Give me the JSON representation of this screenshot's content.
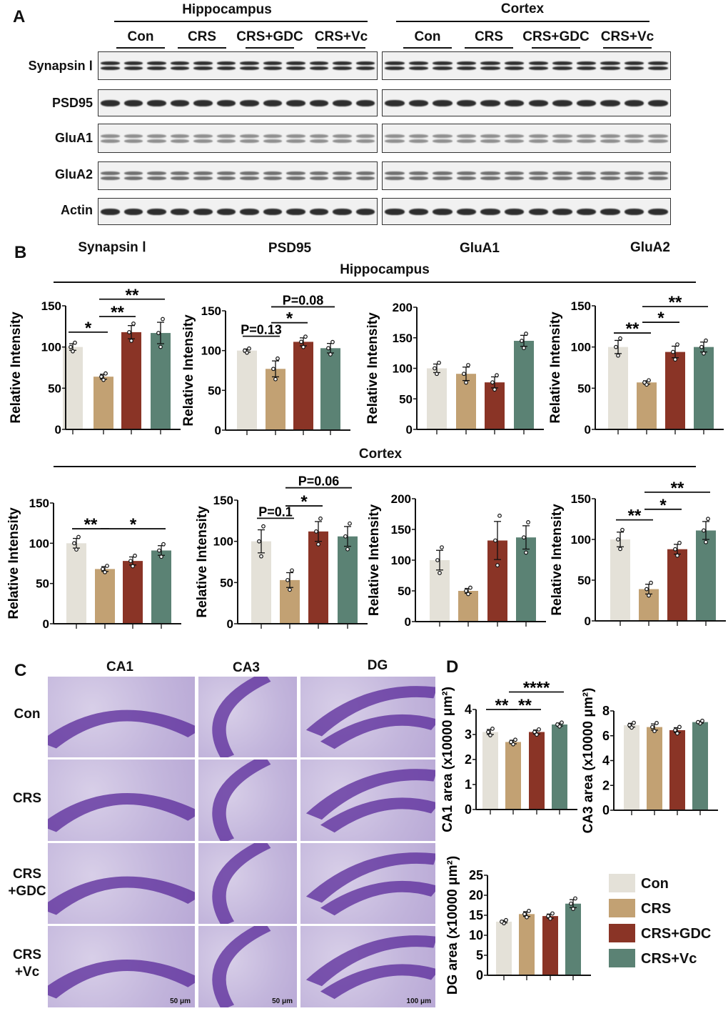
{
  "panels": {
    "A": "A",
    "B": "B",
    "C": "C",
    "D": "D"
  },
  "groups": [
    "Con",
    "CRS",
    "CRS+GDC",
    "CRS+Vc"
  ],
  "colors": {
    "Con": "#e4e1d8",
    "CRS": "#c2a173",
    "CRS+GDC": "#8a3426",
    "CRS+Vc": "#5b8274"
  },
  "blots": {
    "regions": [
      "Hippocampus",
      "Cortex"
    ],
    "rows": [
      "Synapsin Ⅰ",
      "PSD95",
      "GluA1",
      "GluA2",
      "Actin"
    ]
  },
  "section_b": {
    "proteins": [
      "Synapsin Ⅰ",
      "PSD95",
      "GluA1",
      "GluA2"
    ],
    "regions": [
      "Hippocampus",
      "Cortex"
    ]
  },
  "section_c": {
    "columns": [
      "CA1",
      "CA3",
      "DG"
    ],
    "rows": [
      "Con",
      "CRS",
      "CRS\n+GDC",
      "CRS\n+Vc"
    ],
    "row_lines": [
      [
        "Con"
      ],
      [
        "CRS"
      ],
      [
        "CRS",
        "+GDC"
      ],
      [
        "CRS",
        "+Vc"
      ]
    ],
    "scale_bars": [
      "50 μm",
      "50 μm",
      "100 μm"
    ]
  },
  "legend": [
    "Con",
    "CRS",
    "CRS+GDC",
    "CRS+Vc"
  ],
  "chart_data": [
    {
      "id": "hip-synapsin",
      "type": "bar",
      "region": "Hippocampus",
      "protein": "Synapsin Ⅰ",
      "ylabel": "Relative Intensity",
      "ylim": [
        0,
        150
      ],
      "ticks": [
        0,
        50,
        100,
        150
      ],
      "categories": [
        "Con",
        "CRS",
        "CRS+GDC",
        "CRS+Vc"
      ],
      "values": [
        100,
        64,
        118,
        117
      ],
      "sem": [
        4,
        3,
        8,
        13
      ],
      "annotations": [
        {
          "from": 0,
          "to": 1,
          "y": 118,
          "text": "*"
        },
        {
          "from": 1,
          "to": 2,
          "y": 137,
          "text": "**"
        },
        {
          "from": 1,
          "to": 3,
          "y": 158,
          "text": "**"
        }
      ]
    },
    {
      "id": "hip-psd95",
      "type": "bar",
      "region": "Hippocampus",
      "protein": "PSD95",
      "ylabel": "Relative Intensity",
      "ylim": [
        0,
        150
      ],
      "ticks": [
        0,
        50,
        100,
        150
      ],
      "categories": [
        "Con",
        "CRS",
        "CRS+GDC",
        "CRS+Vc"
      ],
      "values": [
        100,
        77,
        111,
        103
      ],
      "sem": [
        2,
        10,
        5,
        6
      ],
      "annotations": [
        {
          "from": 0,
          "to": 1,
          "y": 118,
          "text": "P=0.13"
        },
        {
          "from": 1,
          "to": 2,
          "y": 135,
          "text": "*"
        },
        {
          "from": 1,
          "to": 3,
          "y": 155,
          "text": "P=0.08"
        }
      ]
    },
    {
      "id": "hip-glua1",
      "type": "bar",
      "region": "Hippocampus",
      "protein": "GluA1",
      "ylabel": "Relative Intensity",
      "ylim": [
        0,
        200
      ],
      "ticks": [
        0,
        50,
        100,
        150,
        200
      ],
      "categories": [
        "Con",
        "CRS",
        "CRS+GDC",
        "CRS+Vc"
      ],
      "values": [
        100,
        91,
        77,
        145
      ],
      "sem": [
        7,
        11,
        9,
        9
      ],
      "annotations": []
    },
    {
      "id": "hip-glua2",
      "type": "bar",
      "region": "Hippocampus",
      "protein": "GluA2",
      "ylabel": "Relative Intensity",
      "ylim": [
        0,
        150
      ],
      "ticks": [
        0,
        50,
        100,
        150
      ],
      "categories": [
        "Con",
        "CRS",
        "CRS+GDC",
        "CRS+Vc"
      ],
      "values": [
        100,
        57,
        94,
        100
      ],
      "sem": [
        8,
        2,
        7,
        6
      ],
      "annotations": [
        {
          "from": 0,
          "to": 1,
          "y": 117,
          "text": "**"
        },
        {
          "from": 1,
          "to": 2,
          "y": 130,
          "text": "*"
        },
        {
          "from": 1,
          "to": 3,
          "y": 149,
          "text": "**"
        }
      ]
    },
    {
      "id": "ctx-synapsin",
      "type": "bar",
      "region": "Cortex",
      "protein": "Synapsin Ⅰ",
      "ylabel": "Relative Intensity",
      "ylim": [
        0,
        150
      ],
      "ticks": [
        0,
        50,
        100,
        150
      ],
      "categories": [
        "Con",
        "CRS",
        "CRS+GDC",
        "CRS+Vc"
      ],
      "values": [
        100,
        68,
        78,
        91
      ],
      "sem": [
        6,
        3,
        5,
        6
      ],
      "annotations": [
        {
          "from": 0,
          "to": 1,
          "y": 118,
          "text": "**"
        },
        {
          "from": 1,
          "to": 3,
          "y": 118,
          "text": "*"
        }
      ]
    },
    {
      "id": "ctx-psd95",
      "type": "bar",
      "region": "Cortex",
      "protein": "PSD95",
      "ylabel": "Relative Intensity",
      "ylim": [
        0,
        150
      ],
      "ticks": [
        0,
        50,
        100,
        150
      ],
      "categories": [
        "Con",
        "CRS",
        "CRS+GDC",
        "CRS+Vc"
      ],
      "values": [
        100,
        53,
        112,
        106
      ],
      "sem": [
        14,
        9,
        12,
        12
      ],
      "annotations": [
        {
          "from": 0,
          "to": 1,
          "y": 128,
          "text": "P=0.1"
        },
        {
          "from": 1,
          "to": 2,
          "y": 143,
          "text": "*"
        },
        {
          "from": 1,
          "to": 3,
          "y": 165,
          "text": "P=0.06"
        }
      ]
    },
    {
      "id": "ctx-glua1",
      "type": "bar",
      "region": "Cortex",
      "protein": "GluA1",
      "ylabel": "Relative Intensity",
      "ylim": [
        0,
        200
      ],
      "ticks": [
        0,
        50,
        100,
        150,
        200
      ],
      "categories": [
        "Con",
        "CRS",
        "CRS+GDC",
        "CRS+Vc"
      ],
      "values": [
        100,
        50,
        132,
        137
      ],
      "sem": [
        16,
        4,
        31,
        19
      ],
      "annotations": []
    },
    {
      "id": "ctx-glua2",
      "type": "bar",
      "region": "Cortex",
      "protein": "GluA2",
      "ylabel": "Relative Intensity",
      "ylim": [
        0,
        150
      ],
      "ticks": [
        0,
        50,
        100,
        150
      ],
      "categories": [
        "Con",
        "CRS",
        "CRS+GDC",
        "CRS+Vc"
      ],
      "values": [
        100,
        39,
        88,
        111
      ],
      "sem": [
        9,
        6,
        6,
        11
      ],
      "annotations": [
        {
          "from": 0,
          "to": 1,
          "y": 124,
          "text": "**"
        },
        {
          "from": 1,
          "to": 2,
          "y": 137,
          "text": "*"
        },
        {
          "from": 1,
          "to": 3,
          "y": 158,
          "text": "**"
        }
      ]
    },
    {
      "id": "ca1",
      "type": "bar",
      "ylabel": "CA1 area (x10000 μm²)",
      "ylim": [
        0,
        4
      ],
      "ticks": [
        0,
        1,
        2,
        3,
        4
      ],
      "categories": [
        "Con",
        "CRS",
        "CRS+GDC",
        "CRS+Vc"
      ],
      "values": [
        3.1,
        2.7,
        3.1,
        3.4
      ],
      "sem": [
        0.1,
        0.07,
        0.08,
        0.06
      ],
      "annotations": [
        {
          "from": 0,
          "to": 1,
          "y": 4.0,
          "text": "**"
        },
        {
          "from": 1,
          "to": 2,
          "y": 4.0,
          "text": "**"
        },
        {
          "from": 1,
          "to": 3,
          "y": 4.7,
          "text": "****"
        }
      ]
    },
    {
      "id": "ca3",
      "type": "bar",
      "ylabel": "CA3 area (x10000 μm²)",
      "ylim": [
        0,
        8
      ],
      "ticks": [
        0,
        2,
        4,
        6,
        8
      ],
      "categories": [
        "Con",
        "CRS",
        "CRS+GDC",
        "CRS+Vc"
      ],
      "values": [
        6.85,
        6.7,
        6.45,
        7.1
      ],
      "sem": [
        0.15,
        0.25,
        0.2,
        0.08
      ],
      "annotations": []
    },
    {
      "id": "dg",
      "type": "bar",
      "ylabel": "DG area (x10000 μm²)",
      "ylim": [
        0,
        25
      ],
      "ticks": [
        0,
        5,
        10,
        15,
        20,
        25
      ],
      "categories": [
        "Con",
        "CRS",
        "CRS+GDC",
        "CRS+Vc"
      ],
      "values": [
        13.4,
        15.3,
        14.8,
        17.9
      ],
      "sem": [
        0.3,
        0.6,
        0.5,
        1.0
      ],
      "annotations": []
    }
  ]
}
